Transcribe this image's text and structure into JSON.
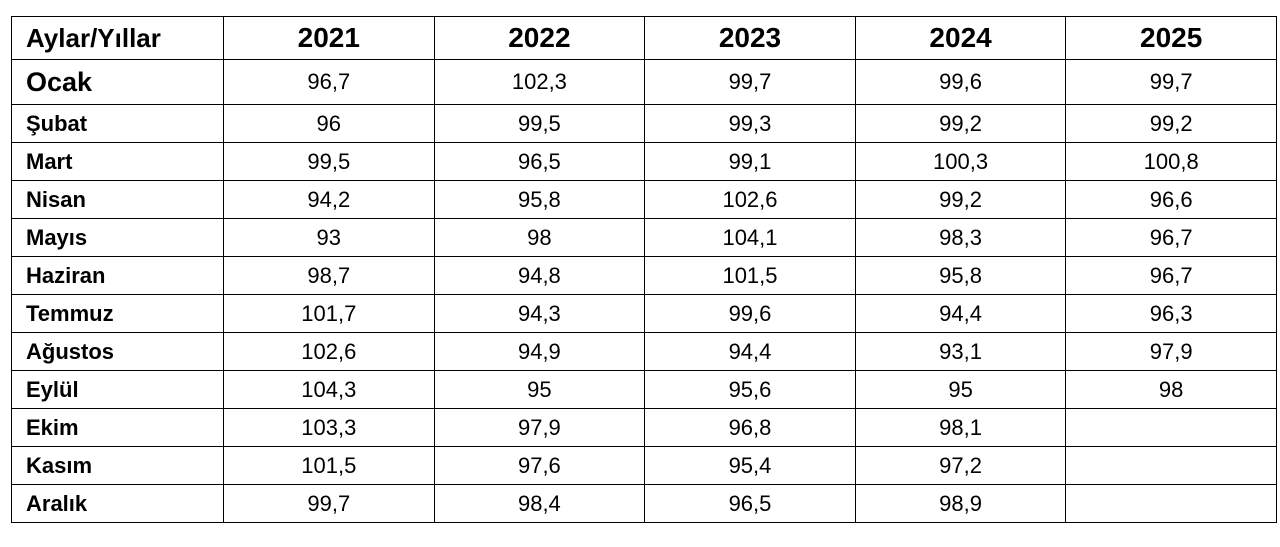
{
  "table": {
    "corner_label": "Aylar/Yıllar",
    "years": [
      "2021",
      "2022",
      "2023",
      "2024",
      "2025"
    ],
    "rows": [
      {
        "month": "Ocak",
        "values": [
          "96,7",
          "102,3",
          "99,7",
          "99,6",
          "99,7"
        ]
      },
      {
        "month": "Şubat",
        "values": [
          "96",
          "99,5",
          "99,3",
          "99,2",
          "99,2"
        ]
      },
      {
        "month": "Mart",
        "values": [
          "99,5",
          "96,5",
          "99,1",
          "100,3",
          "100,8"
        ]
      },
      {
        "month": "Nisan",
        "values": [
          "94,2",
          "95,8",
          "102,6",
          "99,2",
          "96,6"
        ]
      },
      {
        "month": "Mayıs",
        "values": [
          "93",
          "98",
          "104,1",
          "98,3",
          "96,7"
        ]
      },
      {
        "month": "Haziran",
        "values": [
          "98,7",
          "94,8",
          "101,5",
          "95,8",
          "96,7"
        ]
      },
      {
        "month": "Temmuz",
        "values": [
          "101,7",
          "94,3",
          "99,6",
          "94,4",
          "96,3"
        ]
      },
      {
        "month": "Ağustos",
        "values": [
          "102,6",
          "94,9",
          "94,4",
          "93,1",
          "97,9"
        ]
      },
      {
        "month": "Eylül",
        "values": [
          "104,3",
          "95",
          "95,6",
          "95",
          "98"
        ]
      },
      {
        "month": "Ekim",
        "values": [
          "103,3",
          "97,9",
          "96,8",
          "98,1",
          ""
        ]
      },
      {
        "month": "Kasım",
        "values": [
          "101,5",
          "97,6",
          "95,4",
          "97,2",
          ""
        ]
      },
      {
        "month": "Aralık",
        "values": [
          "99,7",
          "98,4",
          "96,5",
          "98,9",
          ""
        ]
      }
    ]
  }
}
